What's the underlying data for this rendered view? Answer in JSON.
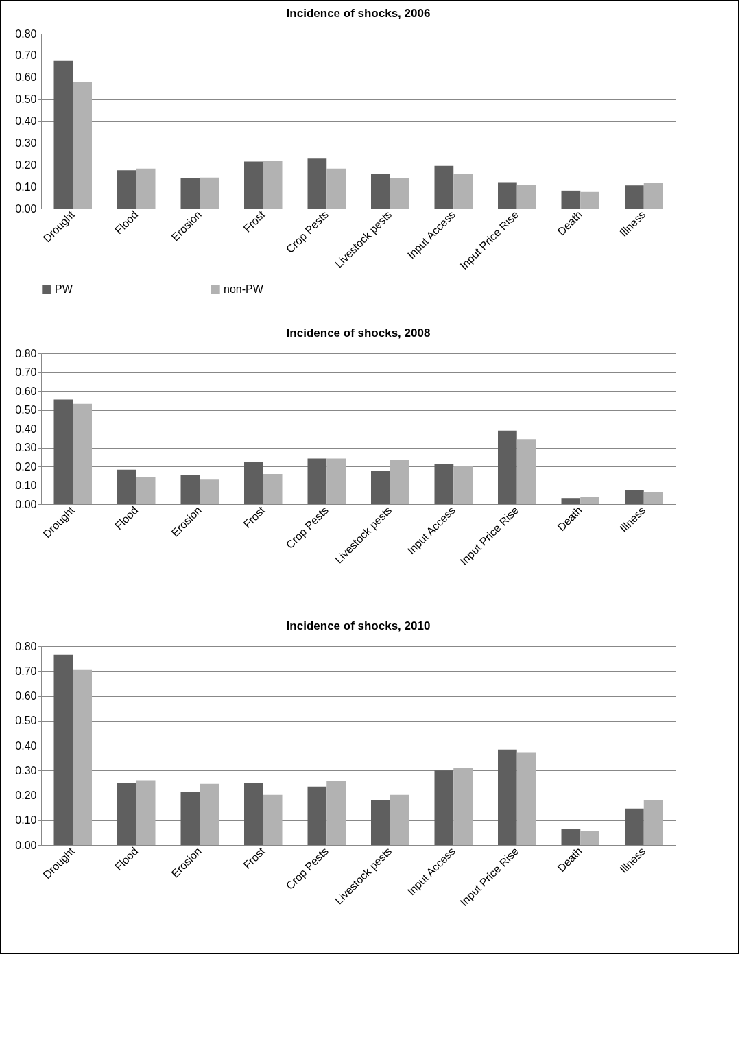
{
  "chart_data": [
    {
      "type": "bar",
      "title": "Incidence of shocks, 2006",
      "categories": [
        "Drought",
        "Flood",
        "Erosion",
        "Frost",
        "Crop Pests",
        "Livestock pests",
        "Input Access",
        "Input Price Rise",
        "Death",
        "Illness"
      ],
      "series": [
        {
          "name": "PW",
          "color": "#5f5f5f",
          "values": [
            0.675,
            0.175,
            0.14,
            0.215,
            0.228,
            0.157,
            0.195,
            0.118,
            0.082,
            0.106
          ]
        },
        {
          "name": "non-PW",
          "color": "#b2b2b2",
          "values": [
            0.58,
            0.183,
            0.142,
            0.22,
            0.183,
            0.14,
            0.16,
            0.11,
            0.076,
            0.116
          ]
        }
      ],
      "ylim": [
        0,
        0.8
      ],
      "yticks": [
        {
          "value": 0,
          "label": "0.00"
        },
        {
          "value": 0.1,
          "label": "0.10"
        },
        {
          "value": 0.2,
          "label": "0.20"
        },
        {
          "value": 0.3,
          "label": "0.30"
        },
        {
          "value": 0.4,
          "label": "0.40"
        },
        {
          "value": 0.5,
          "label": "0.50"
        },
        {
          "value": 0.6,
          "label": "0.60"
        },
        {
          "value": 0.7,
          "label": "0.70"
        },
        {
          "value": 0.8,
          "label": "0.80"
        }
      ],
      "grid": "y",
      "legend": "bottom"
    },
    {
      "type": "bar",
      "title": "Incidence of shocks, 2008",
      "categories": [
        "Drought",
        "Flood",
        "Erosion",
        "Frost",
        "Crop Pests",
        "Livestock pests",
        "Input Access",
        "Input Price Rise",
        "Death",
        "Illness"
      ],
      "series": [
        {
          "color": "#5f5f5f",
          "values": [
            0.555,
            0.183,
            0.155,
            0.223,
            0.242,
            0.176,
            0.214,
            0.39,
            0.032,
            0.073
          ]
        },
        {
          "color": "#b2b2b2",
          "values": [
            0.532,
            0.145,
            0.13,
            0.16,
            0.242,
            0.235,
            0.2,
            0.345,
            0.04,
            0.062
          ]
        }
      ],
      "ylim": [
        0,
        0.8
      ],
      "yticks": [
        {
          "value": 0,
          "label": "0.00"
        },
        {
          "value": 0.1,
          "label": "0.10"
        },
        {
          "value": 0.2,
          "label": "0.20"
        },
        {
          "value": 0.3,
          "label": "0.30"
        },
        {
          "value": 0.4,
          "label": "0.40"
        },
        {
          "value": 0.5,
          "label": "0.50"
        },
        {
          "value": 0.6,
          "label": "0.60"
        },
        {
          "value": 0.7,
          "label": "0.70"
        },
        {
          "value": 0.8,
          "label": "0.80"
        }
      ],
      "grid": "y"
    },
    {
      "type": "bar",
      "title": "Incidence of shocks, 2010",
      "categories": [
        "Drought",
        "Flood",
        "Erosion",
        "Frost",
        "Crop Pests",
        "Livestock pests",
        "Input Access",
        "Input Price Rise",
        "Death",
        "Illness"
      ],
      "series": [
        {
          "color": "#5f5f5f",
          "values": [
            0.765,
            0.25,
            0.215,
            0.25,
            0.235,
            0.18,
            0.3,
            0.384,
            0.066,
            0.147
          ]
        },
        {
          "color": "#b2b2b2",
          "values": [
            0.704,
            0.261,
            0.246,
            0.202,
            0.257,
            0.202,
            0.309,
            0.371,
            0.057,
            0.182
          ]
        }
      ],
      "ylim": [
        0,
        0.8
      ],
      "yticks": [
        {
          "value": 0,
          "label": "0.00"
        },
        {
          "value": 0.1,
          "label": "0.10"
        },
        {
          "value": 0.2,
          "label": "0.20"
        },
        {
          "value": 0.3,
          "label": "0.30"
        },
        {
          "value": 0.4,
          "label": "0.40"
        },
        {
          "value": 0.5,
          "label": "0.50"
        },
        {
          "value": 0.6,
          "label": "0.60"
        },
        {
          "value": 0.7,
          "label": "0.70"
        },
        {
          "value": 0.8,
          "label": "0.80"
        }
      ],
      "grid": "y"
    }
  ]
}
